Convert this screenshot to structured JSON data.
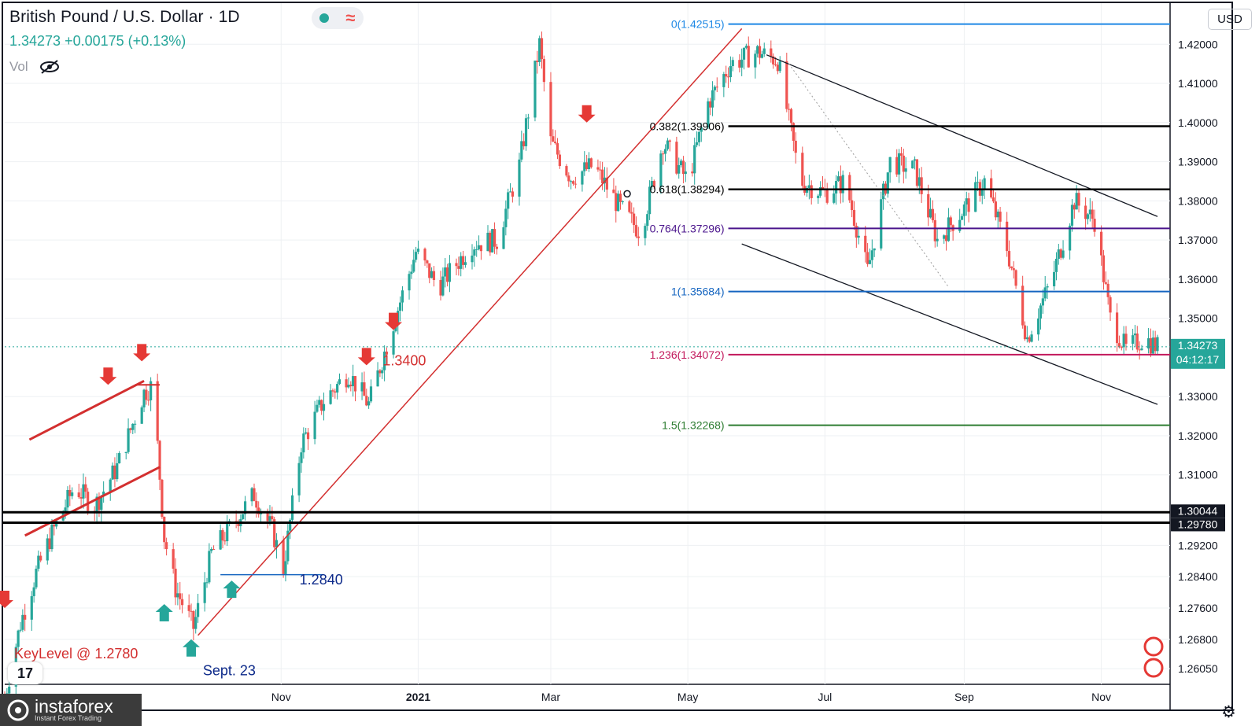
{
  "header": {
    "title": "British Pound / U.S. Dollar · 1D",
    "price": "1.34273",
    "change": "+0.00175 (+0.13%)",
    "vol_label": "Vol"
  },
  "currency_button": "USD",
  "watermark": {
    "brand": "instaforex",
    "tagline": "Instant Forex Trading"
  },
  "colors": {
    "up": "#26a69a",
    "down": "#ef5350",
    "trend": "#d32f2f",
    "fib_blue": "#1565c0",
    "fib_black": "#000000",
    "fib_purple": "#4a148c",
    "fib_pink": "#c2185b",
    "fib_green": "#2e7d32"
  },
  "chart_data": {
    "type": "candlestick",
    "symbol": "GBPUSD",
    "timeframe": "1D",
    "ylim": [
      1.2565,
      1.4305
    ],
    "y_ticks": [
      "1.42000",
      "1.41000",
      "1.40000",
      "1.39000",
      "1.38000",
      "1.37000",
      "1.36000",
      "1.35000",
      "1.33000",
      "1.32000",
      "1.31000",
      "1.29200",
      "1.28400",
      "1.27600",
      "1.26800",
      "1.26050"
    ],
    "x_ticks": [
      "Nov",
      "2021",
      "Mar",
      "May",
      "Jul",
      "Sep",
      "Nov"
    ],
    "x_tick_dates": [
      "2020-11-01",
      "2021-01-01",
      "2021-03-01",
      "2021-05-01",
      "2021-07-01",
      "2021-09-01",
      "2021-11-01"
    ],
    "date_range": [
      "2020-07-01",
      "2021-11-26"
    ],
    "price_badges": [
      {
        "value": 1.34273,
        "label": "1.34273",
        "sub": "04:12:17",
        "color": "#26a69a"
      },
      {
        "value": 1.30044,
        "label": "1.30044",
        "color": "#131722"
      },
      {
        "value": 1.2978,
        "label": "1.29780",
        "color": "#131722"
      }
    ],
    "fib_levels": [
      {
        "label": "0(1.42515)",
        "value": 1.42515,
        "color": "#1e88e5"
      },
      {
        "label": "0.382(1.39906)",
        "value": 1.39906,
        "color": "#000000"
      },
      {
        "label": "0.618(1.38294)",
        "value": 1.38294,
        "color": "#000000"
      },
      {
        "label": "0.764(1.37296)",
        "value": 1.37296,
        "color": "#4a148c"
      },
      {
        "label": "1(1.35684)",
        "value": 1.35684,
        "color": "#1565c0"
      },
      {
        "label": "1.236(1.34072)",
        "value": 1.34072,
        "color": "#c2185b"
      },
      {
        "label": "1.5(1.32268)",
        "value": 1.32268,
        "color": "#2e7d32"
      }
    ],
    "annotations": [
      {
        "text": "KeyLevel @ 1.2780",
        "date": "2020-07-01",
        "price": 1.2643,
        "color": "#d32f2f"
      },
      {
        "text": "Sept. 23",
        "date": "2020-09-23",
        "price": 1.26,
        "color": "#0d2a8a"
      },
      {
        "text": "1.2840",
        "date": "2020-11-05",
        "price": 1.2832,
        "color": "#0d2a8a"
      },
      {
        "text": "1.3400",
        "date": "2020-12-12",
        "price": 1.3392,
        "color": "#d32f2f"
      }
    ],
    "anchors": [
      [
        "2020-07-01",
        1.253
      ],
      [
        "2020-07-08",
        1.272
      ],
      [
        "2020-07-15",
        1.285
      ],
      [
        "2020-07-22",
        1.295
      ],
      [
        "2020-08-01",
        1.307
      ],
      [
        "2020-08-10",
        1.302
      ],
      [
        "2020-08-20",
        1.312
      ],
      [
        "2020-09-01",
        1.331
      ],
      [
        "2020-09-05",
        1.333
      ],
      [
        "2020-09-10",
        1.294
      ],
      [
        "2020-09-15",
        1.281
      ],
      [
        "2020-09-23",
        1.271
      ],
      [
        "2020-10-01",
        1.29
      ],
      [
        "2020-10-10",
        1.297
      ],
      [
        "2020-10-20",
        1.305
      ],
      [
        "2020-10-28",
        1.296
      ],
      [
        "2020-11-02",
        1.286
      ],
      [
        "2020-11-10",
        1.318
      ],
      [
        "2020-11-20",
        1.329
      ],
      [
        "2020-12-01",
        1.336
      ],
      [
        "2020-12-10",
        1.328
      ],
      [
        "2020-12-20",
        1.347
      ],
      [
        "2020-12-31",
        1.367
      ],
      [
        "2021-01-10",
        1.358
      ],
      [
        "2021-01-25",
        1.369
      ],
      [
        "2021-02-05",
        1.37
      ],
      [
        "2021-02-15",
        1.389
      ],
      [
        "2021-02-24",
        1.42
      ],
      [
        "2021-03-01",
        1.395
      ],
      [
        "2021-03-10",
        1.386
      ],
      [
        "2021-03-20",
        1.389
      ],
      [
        "2021-04-01",
        1.378
      ],
      [
        "2021-04-10",
        1.372
      ],
      [
        "2021-04-20",
        1.395
      ],
      [
        "2021-05-01",
        1.385
      ],
      [
        "2021-05-10",
        1.405
      ],
      [
        "2021-05-20",
        1.415
      ],
      [
        "2021-06-01",
        1.418
      ],
      [
        "2021-06-10",
        1.416
      ],
      [
        "2021-06-20",
        1.385
      ],
      [
        "2021-07-01",
        1.382
      ],
      [
        "2021-07-10",
        1.385
      ],
      [
        "2021-07-20",
        1.362
      ],
      [
        "2021-07-30",
        1.39
      ],
      [
        "2021-08-10",
        1.388
      ],
      [
        "2021-08-20",
        1.37
      ],
      [
        "2021-09-01",
        1.378
      ],
      [
        "2021-09-10",
        1.385
      ],
      [
        "2021-09-20",
        1.368
      ],
      [
        "2021-09-29",
        1.345
      ],
      [
        "2021-10-10",
        1.36
      ],
      [
        "2021-10-20",
        1.38
      ],
      [
        "2021-10-29",
        1.375
      ],
      [
        "2021-11-05",
        1.35
      ],
      [
        "2021-11-12",
        1.342
      ],
      [
        "2021-11-20",
        1.345
      ],
      [
        "2021-11-26",
        1.3427
      ]
    ]
  }
}
